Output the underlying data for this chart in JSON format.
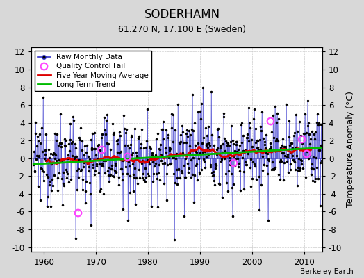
{
  "title": "SODERHAMN",
  "subtitle": "61.270 N, 17.100 E (Sweden)",
  "ylabel": "Temperature Anomaly (°C)",
  "credit": "Berkeley Earth",
  "xlim": [
    1957.5,
    2013.5
  ],
  "ylim": [
    -10.5,
    12.5
  ],
  "yticks": [
    -10,
    -8,
    -6,
    -4,
    -2,
    0,
    2,
    4,
    6,
    8,
    10,
    12
  ],
  "xticks": [
    1960,
    1970,
    1980,
    1990,
    2000,
    2010
  ],
  "bg_color": "#d8d8d8",
  "plot_bg_color": "#ffffff",
  "line_color": "#3333cc",
  "ma_color": "#dd0000",
  "trend_color": "#00bb00",
  "qc_color": "#ff44ff",
  "seed": 12345
}
